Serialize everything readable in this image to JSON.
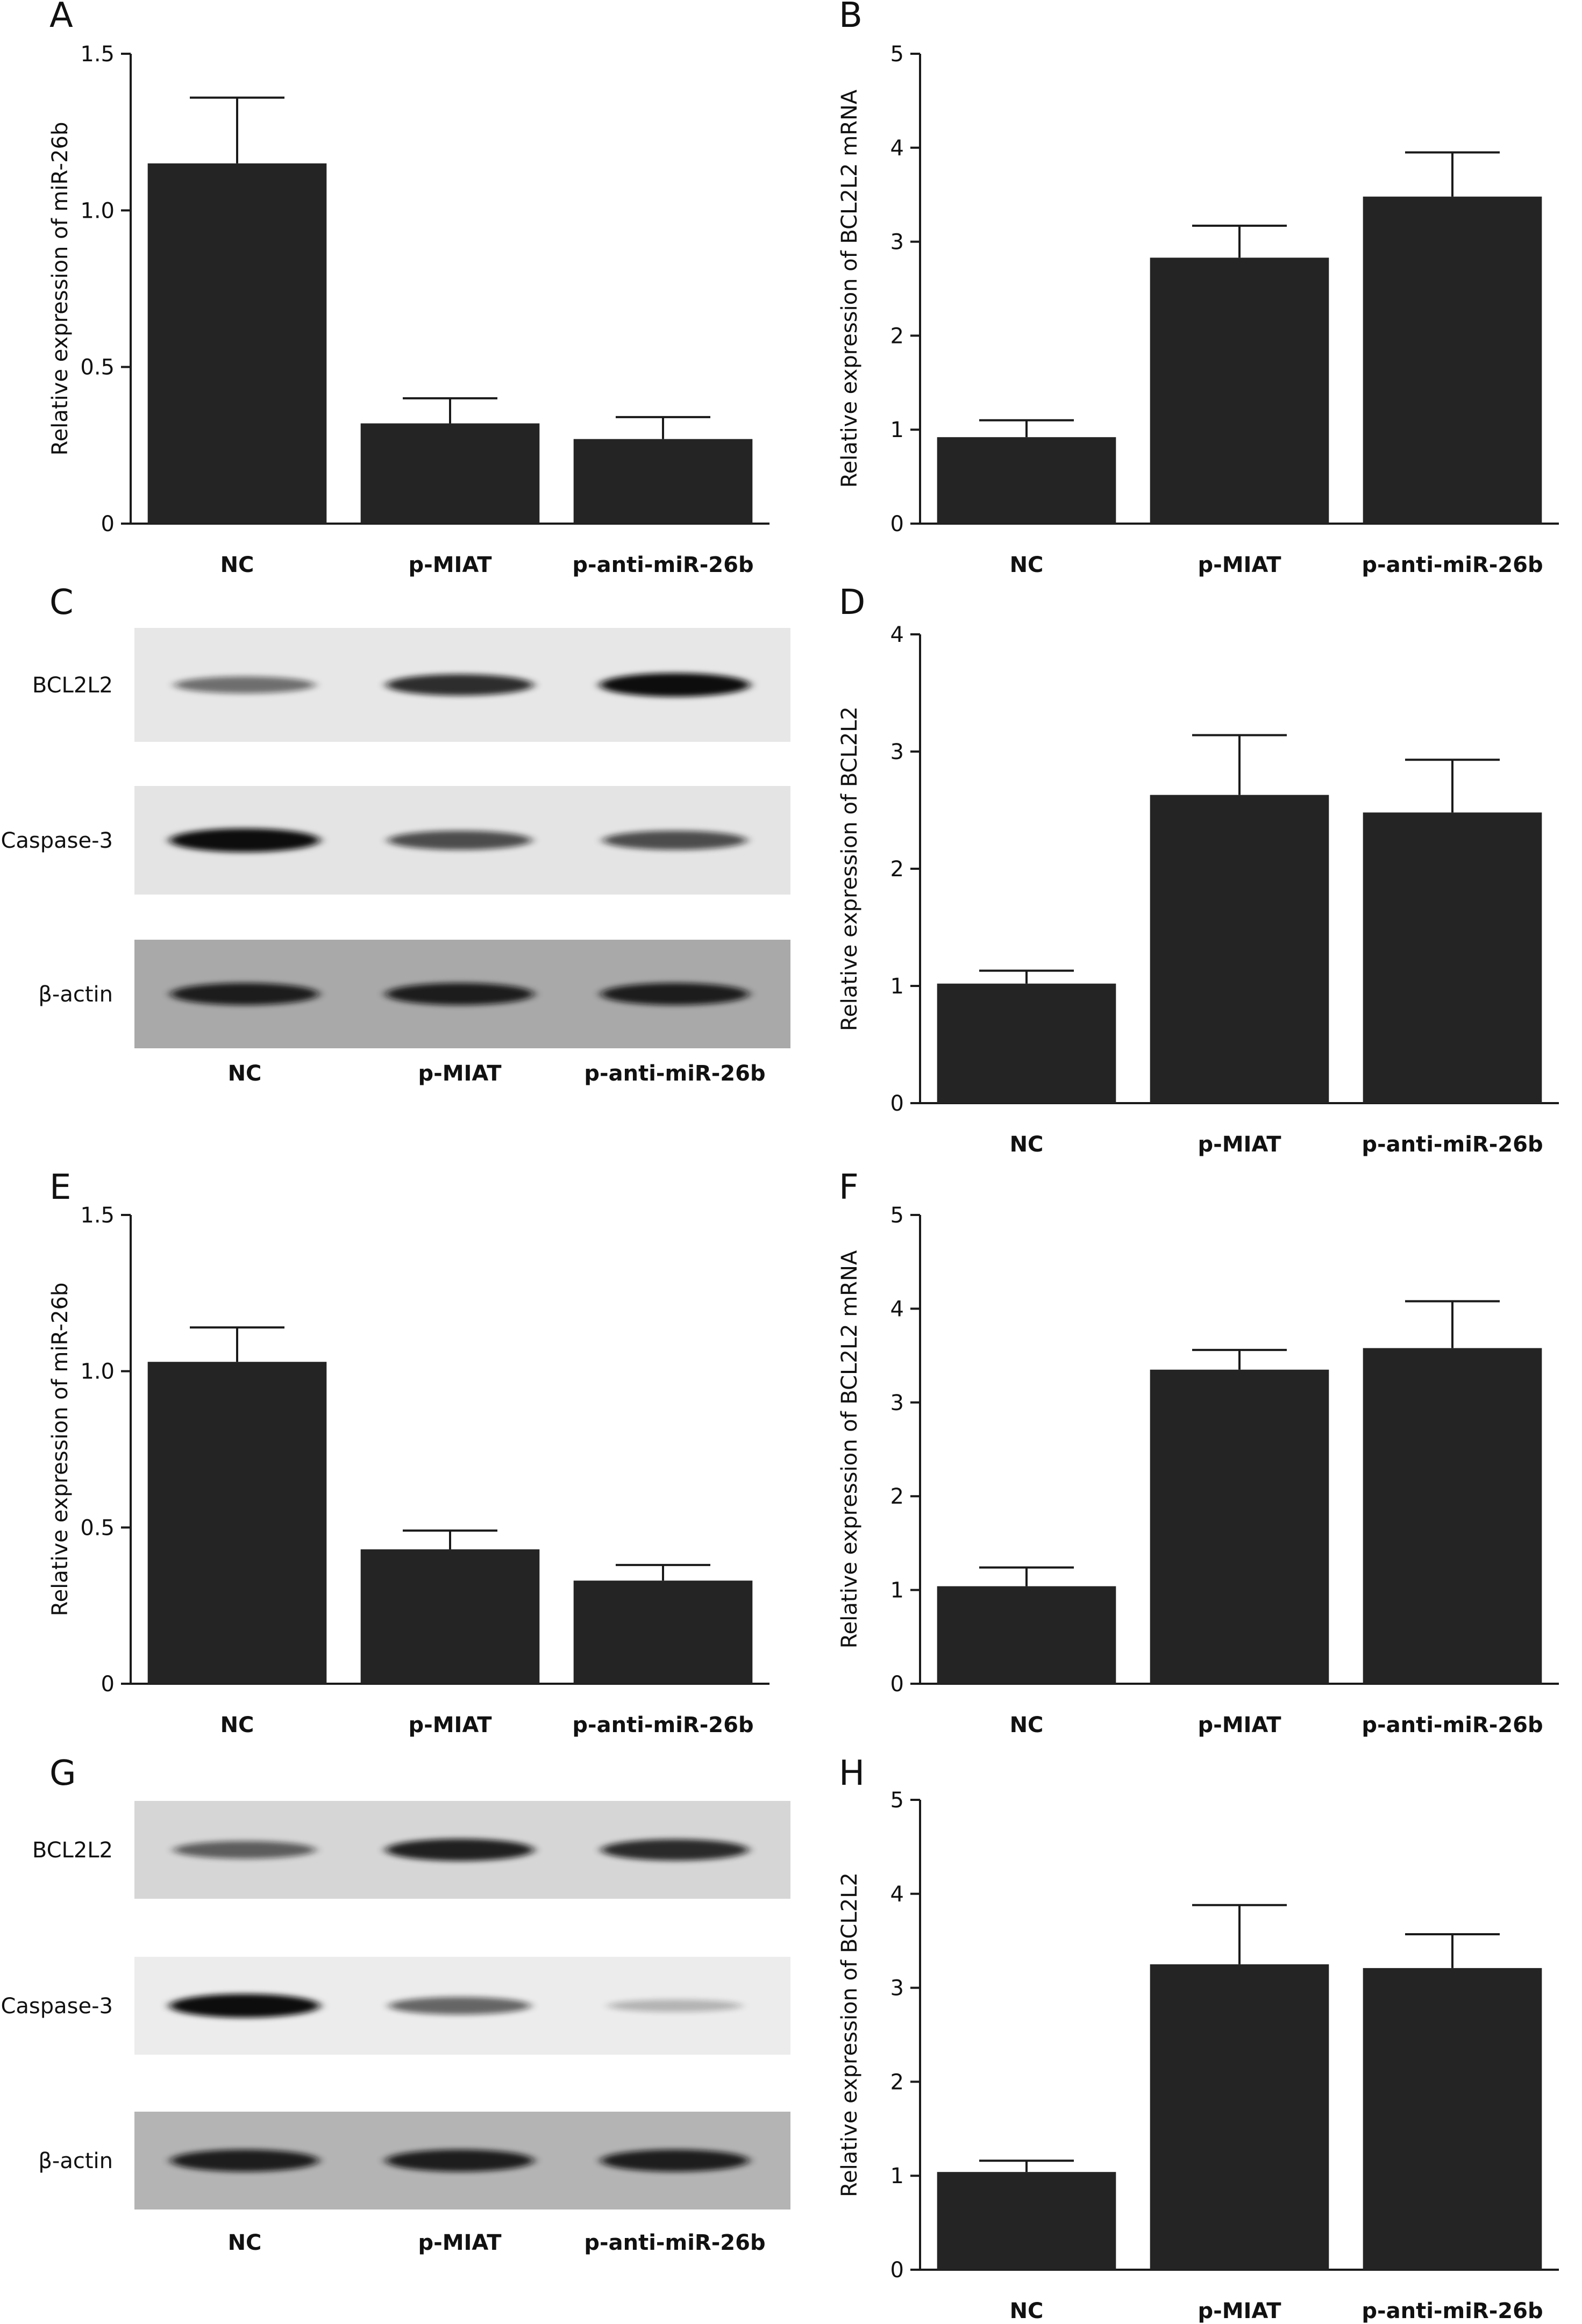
{
  "figure": {
    "panel_letters": [
      "A",
      "B",
      "C",
      "D",
      "E",
      "F",
      "G",
      "H"
    ]
  },
  "colors": {
    "bar": "#242424",
    "axis": "#1a1a1a",
    "text": "#111111"
  },
  "chart_data": [
    {
      "panel": "A",
      "type": "bar",
      "categories": [
        "NC",
        "p-MIAT",
        "p-anti-miR-26b"
      ],
      "values": [
        1.15,
        0.32,
        0.27
      ],
      "errors": [
        0.21,
        0.08,
        0.07
      ],
      "ylabel": "Relative expression of miR-26b",
      "ylim": [
        0,
        1.5
      ],
      "yticks": [
        0,
        0.5,
        1.0,
        1.5
      ],
      "ytick_labels": [
        "0",
        "0.5",
        "1.0",
        "1.5"
      ]
    },
    {
      "panel": "B",
      "type": "bar",
      "categories": [
        "NC",
        "p-MIAT",
        "p-anti-miR-26b"
      ],
      "values": [
        0.92,
        2.83,
        3.48
      ],
      "errors": [
        0.18,
        0.34,
        0.47
      ],
      "ylabel": "Relative expression of BCL2L2 mRNA",
      "ylim": [
        0,
        5
      ],
      "yticks": [
        0,
        1,
        2,
        3,
        4,
        5
      ],
      "ytick_labels": [
        "0",
        "1",
        "2",
        "3",
        "4",
        "5"
      ]
    },
    {
      "panel": "D",
      "type": "bar",
      "categories": [
        "NC",
        "p-MIAT",
        "p-anti-miR-26b"
      ],
      "values": [
        1.02,
        2.63,
        2.48
      ],
      "errors": [
        0.11,
        0.51,
        0.45
      ],
      "ylabel": "Relative expression of BCL2L2",
      "ylim": [
        0,
        4
      ],
      "yticks": [
        0,
        1,
        2,
        3,
        4
      ],
      "ytick_labels": [
        "0",
        "1",
        "2",
        "3",
        "4"
      ]
    },
    {
      "panel": "E",
      "type": "bar",
      "categories": [
        "NC",
        "p-MIAT",
        "p-anti-miR-26b"
      ],
      "values": [
        1.03,
        0.43,
        0.33
      ],
      "errors": [
        0.11,
        0.06,
        0.05
      ],
      "ylabel": "Relative expression of miR-26b",
      "ylim": [
        0,
        1.5
      ],
      "yticks": [
        0,
        0.5,
        1.0,
        1.5
      ],
      "ytick_labels": [
        "0",
        "0.5",
        "1.0",
        "1.5"
      ]
    },
    {
      "panel": "F",
      "type": "bar",
      "categories": [
        "NC",
        "p-MIAT",
        "p-anti-miR-26b"
      ],
      "values": [
        1.04,
        3.35,
        3.58
      ],
      "errors": [
        0.2,
        0.21,
        0.5
      ],
      "ylabel": "Relative expression of BCL2L2 mRNA",
      "ylim": [
        0,
        5
      ],
      "yticks": [
        0,
        1,
        2,
        3,
        4,
        5
      ],
      "ytick_labels": [
        "0",
        "1",
        "2",
        "3",
        "4",
        "5"
      ]
    },
    {
      "panel": "H",
      "type": "bar",
      "categories": [
        "NC",
        "p-MIAT",
        "p-anti-miR-26b"
      ],
      "values": [
        1.04,
        3.25,
        3.21
      ],
      "errors": [
        0.12,
        0.63,
        0.36
      ],
      "ylabel": "Relative expression of BCL2L2",
      "ylim": [
        0,
        5
      ],
      "yticks": [
        0,
        1,
        2,
        3,
        4,
        5
      ],
      "ytick_labels": [
        "0",
        "1",
        "2",
        "3",
        "4",
        "5"
      ]
    }
  ],
  "blots": [
    {
      "panel": "C",
      "lane_labels": [
        "NC",
        "p-MIAT",
        "p-anti-miR-26b"
      ],
      "rows": [
        {
          "label": "BCL2L2",
          "background": "#e7e7e7",
          "intensities": [
            0.55,
            0.85,
            1.0
          ]
        },
        {
          "label": "Caspase-3",
          "background": "#e4e4e4",
          "intensities": [
            1.0,
            0.7,
            0.7
          ]
        },
        {
          "label": "β-actin",
          "background": "#a9a9a9",
          "intensities": [
            0.9,
            0.9,
            0.9
          ]
        }
      ]
    },
    {
      "panel": "G",
      "lane_labels": [
        "NC",
        "p-MIAT",
        "p-anti-miR-26b"
      ],
      "rows": [
        {
          "label": "BCL2L2",
          "background": "#d6d6d6",
          "intensities": [
            0.6,
            0.9,
            0.85
          ]
        },
        {
          "label": "Caspase-3",
          "background": "#ececec",
          "intensities": [
            1.0,
            0.6,
            0.25
          ]
        },
        {
          "label": "β-actin",
          "background": "#b4b4b4",
          "intensities": [
            0.9,
            0.9,
            0.9
          ]
        }
      ]
    }
  ]
}
